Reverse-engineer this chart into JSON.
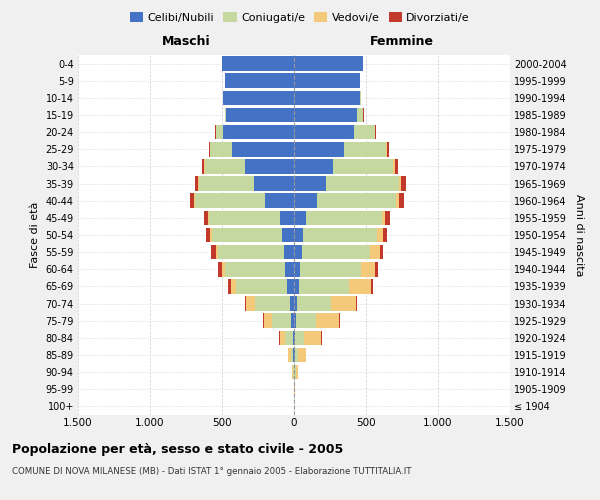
{
  "age_groups": [
    "100+",
    "95-99",
    "90-94",
    "85-89",
    "80-84",
    "75-79",
    "70-74",
    "65-69",
    "60-64",
    "55-59",
    "50-54",
    "45-49",
    "40-44",
    "35-39",
    "30-34",
    "25-29",
    "20-24",
    "15-19",
    "10-14",
    "5-9",
    "0-4"
  ],
  "birth_years": [
    "≤ 1904",
    "1905-1909",
    "1910-1914",
    "1915-1919",
    "1920-1924",
    "1925-1929",
    "1930-1934",
    "1935-1939",
    "1940-1944",
    "1945-1949",
    "1950-1954",
    "1955-1959",
    "1960-1964",
    "1965-1969",
    "1970-1974",
    "1975-1979",
    "1980-1984",
    "1985-1989",
    "1990-1994",
    "1995-1999",
    "2000-2004"
  ],
  "male": {
    "celibi": [
      0,
      1,
      3,
      5,
      10,
      20,
      30,
      50,
      60,
      70,
      80,
      100,
      200,
      280,
      340,
      430,
      490,
      470,
      490,
      480,
      500
    ],
    "coniugati": [
      0,
      1,
      5,
      15,
      50,
      130,
      240,
      350,
      420,
      460,
      490,
      490,
      490,
      380,
      280,
      150,
      50,
      10,
      2,
      0,
      0
    ],
    "vedovi": [
      0,
      1,
      5,
      20,
      40,
      60,
      60,
      40,
      20,
      15,
      10,
      8,
      5,
      5,
      3,
      2,
      1,
      0,
      0,
      0,
      0
    ],
    "divorziati": [
      0,
      0,
      0,
      0,
      2,
      5,
      10,
      20,
      25,
      30,
      30,
      28,
      30,
      25,
      18,
      10,
      5,
      2,
      0,
      0,
      0
    ]
  },
  "female": {
    "nubili": [
      0,
      1,
      3,
      5,
      8,
      15,
      20,
      35,
      45,
      55,
      65,
      80,
      160,
      220,
      270,
      350,
      420,
      440,
      460,
      460,
      480
    ],
    "coniugate": [
      0,
      2,
      8,
      20,
      60,
      140,
      240,
      350,
      420,
      470,
      510,
      530,
      550,
      510,
      420,
      290,
      140,
      40,
      5,
      0,
      0
    ],
    "vedove": [
      0,
      5,
      20,
      60,
      120,
      160,
      170,
      150,
      100,
      70,
      40,
      25,
      20,
      15,
      10,
      5,
      3,
      1,
      0,
      0,
      0
    ],
    "divorziate": [
      0,
      0,
      0,
      1,
      3,
      5,
      10,
      15,
      20,
      25,
      30,
      30,
      35,
      35,
      25,
      15,
      8,
      3,
      1,
      0,
      0
    ]
  },
  "colors": {
    "celibi": "#4472C4",
    "coniugati": "#c5d8a0",
    "vedovi": "#f5c97a",
    "divorziati": "#c0392b"
  },
  "xlim": 1500,
  "title": "Popolazione per età, sesso e stato civile - 2005",
  "subtitle": "COMUNE DI NOVA MILANESE (MB) - Dati ISTAT 1° gennaio 2005 - Elaborazione TUTTITALIA.IT",
  "xlabel_left": "Maschi",
  "xlabel_right": "Femmine",
  "ylabel_left": "Fasce di età",
  "ylabel_right": "Anni di nascita",
  "xticks": [
    -1500,
    -1000,
    -500,
    0,
    500,
    1000,
    1500
  ],
  "xtick_labels": [
    "1.500",
    "1.000",
    "500",
    "0",
    "500",
    "1.000",
    "1.500"
  ],
  "bg_color": "#f0f0f0",
  "plot_bg": "#ffffff"
}
